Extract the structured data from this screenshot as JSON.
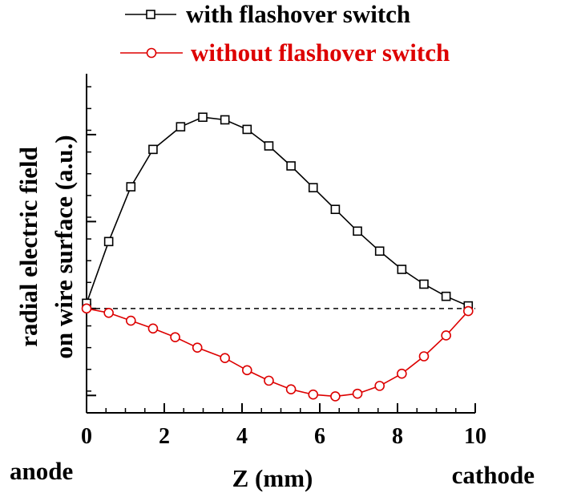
{
  "chart_data": {
    "type": "line",
    "title": "",
    "xlabel": "Z (mm)",
    "ylabel_line1": "radial electric field",
    "ylabel_line2": "on wire surface (a.u.)",
    "xlim": [
      0,
      10
    ],
    "ylim": [
      -1.2,
      2.7
    ],
    "x_ticks": [
      0,
      2,
      4,
      6,
      8,
      10
    ],
    "x_tick_labels": [
      "0",
      "2",
      "4",
      "6",
      "8",
      "10"
    ],
    "y_tick_values": [
      -1,
      0,
      1,
      2
    ],
    "end_labels": {
      "left": "anode",
      "right": "cathode"
    },
    "legend_position": "top-right",
    "zero_line": {
      "y": 0,
      "style": "dashed"
    },
    "series": [
      {
        "name": "with flashover switch",
        "color": "#000000",
        "marker": "square",
        "x": [
          0.0,
          0.57,
          1.14,
          1.71,
          2.42,
          2.99,
          3.56,
          4.13,
          4.69,
          5.26,
          5.83,
          6.4,
          6.97,
          7.54,
          8.11,
          8.68,
          9.25,
          9.82
        ],
        "y": [
          0.06,
          0.77,
          1.4,
          1.83,
          2.09,
          2.2,
          2.17,
          2.06,
          1.87,
          1.64,
          1.39,
          1.14,
          0.89,
          0.66,
          0.45,
          0.28,
          0.14,
          0.03
        ]
      },
      {
        "name": "without flashover switch",
        "color": "#dd0000",
        "marker": "circle",
        "x": [
          0.0,
          0.57,
          1.14,
          1.71,
          2.28,
          2.85,
          3.56,
          4.13,
          4.69,
          5.26,
          5.83,
          6.4,
          6.97,
          7.54,
          8.11,
          8.68,
          9.25,
          9.82
        ],
        "y": [
          0.0,
          -0.05,
          -0.14,
          -0.23,
          -0.33,
          -0.45,
          -0.57,
          -0.71,
          -0.83,
          -0.93,
          -0.99,
          -1.01,
          -0.98,
          -0.89,
          -0.75,
          -0.55,
          -0.31,
          -0.03
        ]
      }
    ]
  }
}
